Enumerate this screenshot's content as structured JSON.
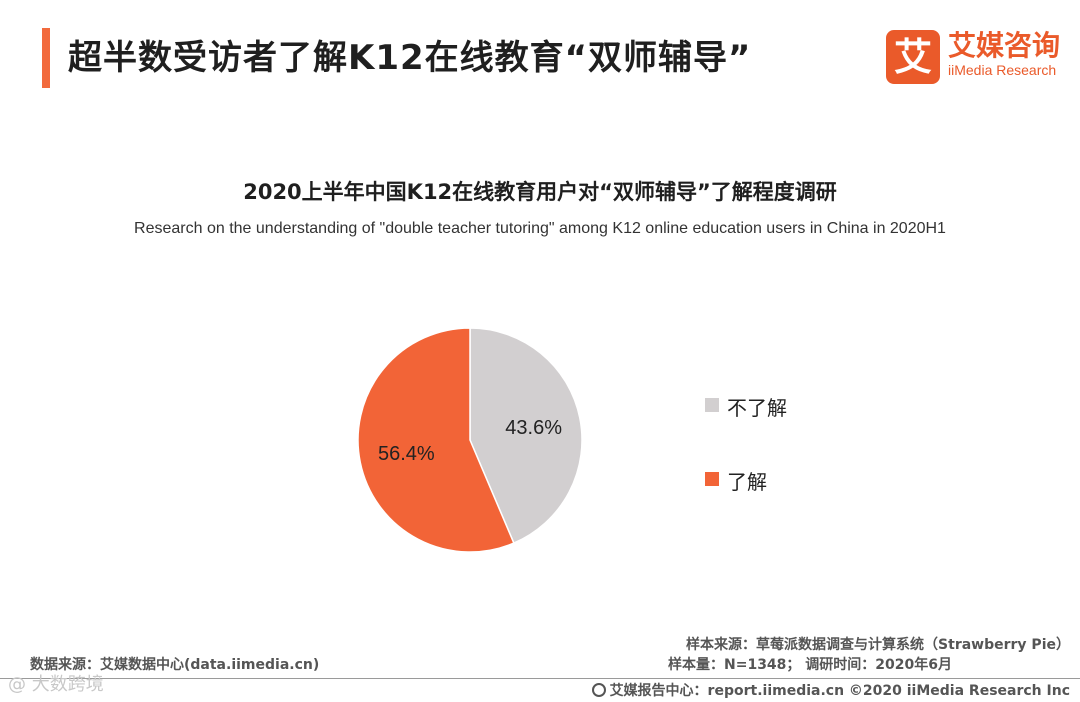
{
  "header": {
    "title": "超半数受访者了解K12在线教育“双师辅导”",
    "accent_color": "#f26a3d"
  },
  "logo": {
    "mark": "艾",
    "name_cn": "艾媒咨询",
    "name_en": "iiMedia Research"
  },
  "chart_data": {
    "type": "pie",
    "title": "2020上半年中国K12在线教育用户对“双师辅导”了解程度调研",
    "subtitle": "Research on the understanding of \"double teacher tutoring\" among K12 online education users in China in 2020H1",
    "slices": [
      {
        "label": "不了解",
        "value": 43.6,
        "display": "43.6%",
        "color": "#d2cfd0"
      },
      {
        "label": "了解",
        "value": 56.4,
        "display": "56.4%",
        "color": "#f26437"
      }
    ],
    "legend_position": "right"
  },
  "footer": {
    "data_source": "数据来源：艾媒数据中心(data.iimedia.cn)",
    "sample_source": "样本来源：草莓派数据调查与计算系统（Strawberry Pie）",
    "sample_size": "样本量：N=1348；  调研时间：2020年6月",
    "report_center": "艾媒报告中心：report.iimedia.cn  ©2020  iiMedia Research  Inc",
    "watermark": "@ 大数跨境"
  }
}
